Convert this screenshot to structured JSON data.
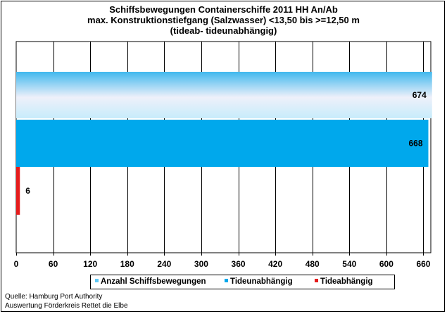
{
  "chart_data": {
    "type": "bar",
    "orientation": "horizontal",
    "title_lines": [
      "Schiffsbewegungen  Containerschiffe  2011 HH An/Ab",
      "max. Konstruktionstiefgang  (Salzwasser)  <13,50 bis >=12,50 m",
      "(tideab- tideunabhängig)"
    ],
    "xlim": [
      0,
      672
    ],
    "xticks": [
      0,
      60,
      120,
      180,
      240,
      300,
      360,
      420,
      480,
      540,
      600,
      660
    ],
    "grid": "vertical",
    "legend_position": "bottom",
    "series": [
      {
        "name": "Anzahl Schiffsbewegungen",
        "values": [
          674
        ],
        "color": "#5ec8f5",
        "style": "gradient",
        "data_label": "674"
      },
      {
        "name": "Tideunabhängig",
        "values": [
          668
        ],
        "color": "#00a8ec",
        "style": "solid",
        "data_label": "668"
      },
      {
        "name": "Tideabhängig",
        "values": [
          6
        ],
        "color": "#e51c1c",
        "style": "solid",
        "data_label": "6"
      }
    ]
  },
  "source": {
    "line1": "Quelle: Hamburg Port Authority",
    "line2": "Auswertung Förderkreis Rettet die Elbe"
  }
}
